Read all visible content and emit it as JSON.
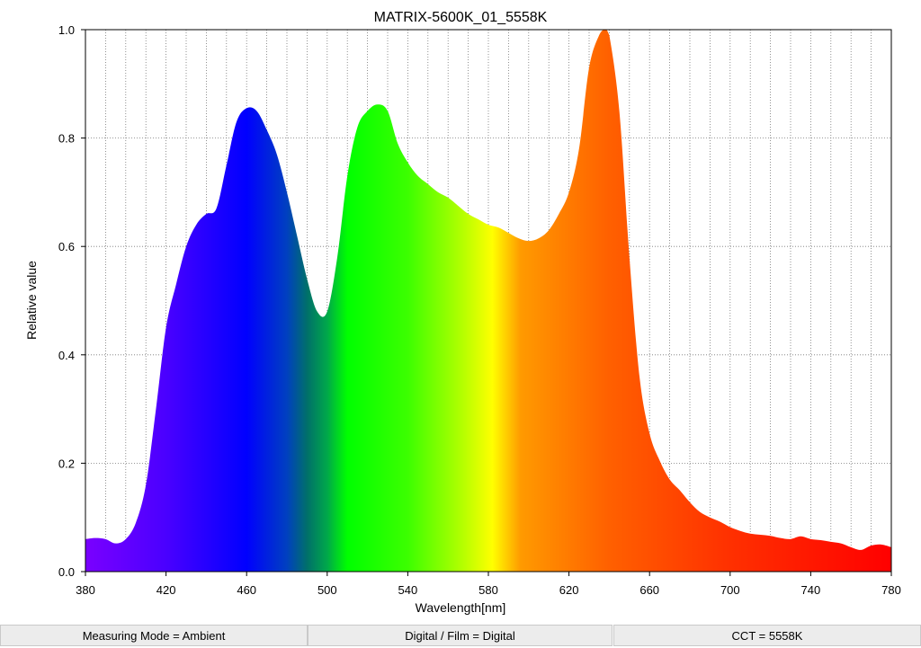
{
  "chart_data": {
    "type": "area",
    "title": "MATRIX-5600K_01_5558K",
    "xlabel": "Wavelength[nm]",
    "ylabel": "Relative value",
    "xlim": [
      380,
      780
    ],
    "ylim": [
      0,
      1.0
    ],
    "x_ticks": [
      380,
      420,
      460,
      500,
      540,
      580,
      620,
      660,
      700,
      740,
      780
    ],
    "x_tick_labels": [
      "380",
      "420",
      "460",
      "500",
      "540",
      "580",
      "620",
      "660",
      "700",
      "740",
      "780"
    ],
    "y_ticks": [
      0,
      0.2,
      0.4,
      0.6,
      0.8,
      1.0
    ],
    "y_tick_labels": [
      "0.0",
      "0.2",
      "0.4",
      "0.6",
      "0.8",
      "1.0"
    ],
    "x_minor_step": 10,
    "grid": true,
    "fill": "visible-spectrum",
    "x": [
      380,
      385,
      390,
      395,
      400,
      405,
      410,
      415,
      420,
      425,
      430,
      435,
      440,
      445,
      450,
      455,
      460,
      465,
      470,
      475,
      480,
      485,
      490,
      495,
      500,
      505,
      510,
      515,
      520,
      525,
      530,
      535,
      540,
      545,
      550,
      555,
      560,
      565,
      570,
      575,
      580,
      585,
      590,
      595,
      600,
      605,
      610,
      615,
      620,
      625,
      630,
      635,
      638,
      640,
      645,
      650,
      655,
      660,
      665,
      670,
      675,
      680,
      685,
      690,
      695,
      700,
      705,
      710,
      715,
      720,
      725,
      730,
      735,
      740,
      745,
      750,
      755,
      760,
      765,
      770,
      775,
      780
    ],
    "values": [
      0.06,
      0.062,
      0.06,
      0.052,
      0.06,
      0.09,
      0.16,
      0.3,
      0.45,
      0.53,
      0.6,
      0.64,
      0.66,
      0.67,
      0.75,
      0.83,
      0.855,
      0.85,
      0.815,
      0.77,
      0.7,
      0.62,
      0.54,
      0.48,
      0.48,
      0.58,
      0.73,
      0.82,
      0.85,
      0.862,
      0.85,
      0.79,
      0.755,
      0.73,
      0.715,
      0.7,
      0.69,
      0.675,
      0.66,
      0.65,
      0.64,
      0.635,
      0.625,
      0.615,
      0.61,
      0.615,
      0.63,
      0.66,
      0.7,
      0.78,
      0.93,
      0.99,
      1.0,
      0.99,
      0.85,
      0.58,
      0.36,
      0.255,
      0.205,
      0.17,
      0.15,
      0.128,
      0.11,
      0.1,
      0.092,
      0.082,
      0.075,
      0.07,
      0.068,
      0.066,
      0.062,
      0.06,
      0.065,
      0.06,
      0.058,
      0.055,
      0.052,
      0.045,
      0.04,
      0.048,
      0.05,
      0.045
    ]
  },
  "status_bar": {
    "measuring_mode": "Measuring Mode = Ambient",
    "digital_film": "Digital / Film = Digital",
    "cct": "CCT = 5558K"
  }
}
